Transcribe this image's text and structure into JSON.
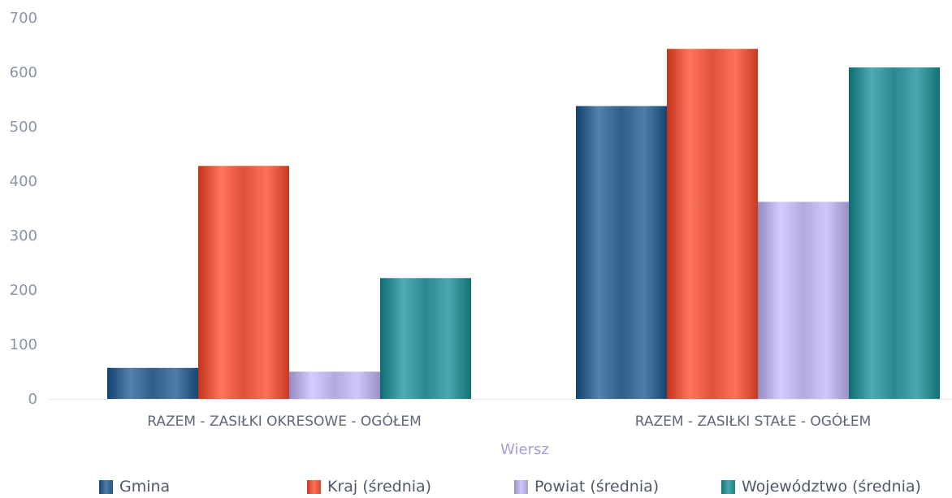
{
  "chart_data": {
    "type": "bar",
    "categories": [
      "RAZEM -  ZASIŁKI OKRESOWE - OGÓŁEM",
      "RAZEM -  ZASIŁKI STAŁE - OGÓŁEM"
    ],
    "series": [
      {
        "name": "Gmina",
        "values": [
          57,
          538
        ],
        "color": "#2f5f8a"
      },
      {
        "name": "Kraj (średnia)",
        "values": [
          428,
          643
        ],
        "color": "#e0523a"
      },
      {
        "name": "Powiat (średnia)",
        "values": [
          50,
          362
        ],
        "color": "#b3a9de"
      },
      {
        "name": "Województwo (średnia)",
        "values": [
          222,
          609
        ],
        "color": "#2a8a8f"
      }
    ],
    "xlabel": "Wiersz",
    "ylabel": "",
    "ylim": [
      0,
      700
    ],
    "yticks": [
      "0",
      "100",
      "200",
      "300",
      "400",
      "500",
      "600",
      "700"
    ],
    "grid": false,
    "legend_position": "bottom"
  }
}
